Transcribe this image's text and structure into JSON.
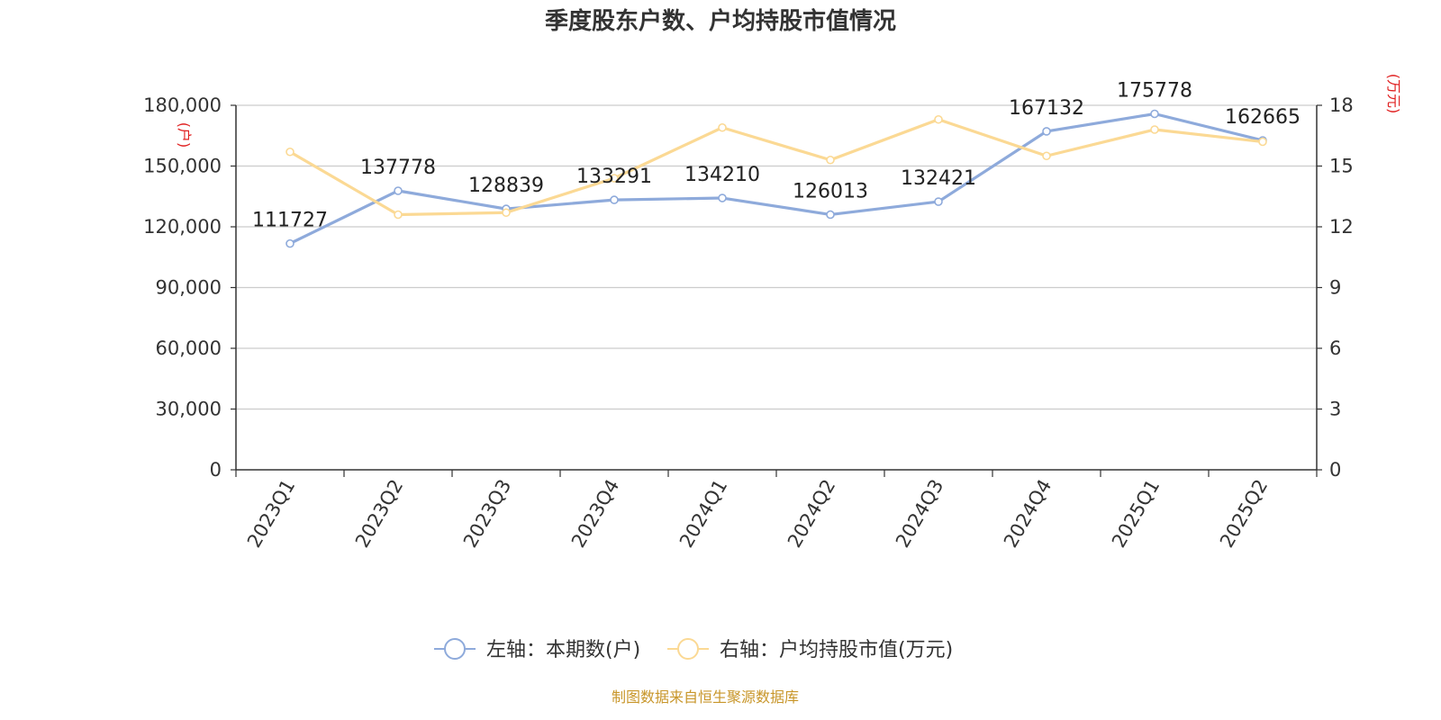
{
  "title": "季度股东户数、户均持股市值情况",
  "source": "制图数据来自恒生聚源数据库",
  "left_unit": "(户)",
  "right_unit": "(万元)",
  "chart_data": {
    "type": "line",
    "title": "季度股东户数、户均持股市值情况",
    "categories": [
      "2023Q1",
      "2023Q2",
      "2023Q3",
      "2023Q4",
      "2024Q1",
      "2024Q2",
      "2024Q3",
      "2024Q4",
      "2025Q1",
      "2025Q2"
    ],
    "y_left": {
      "range": [
        0,
        180000
      ],
      "ticks": [
        0,
        30000,
        60000,
        90000,
        120000,
        150000,
        180000
      ],
      "tick_labels": [
        "0",
        "30,000",
        "60,000",
        "90,000",
        "120,000",
        "150,000",
        "180,000"
      ],
      "unit": "(户)"
    },
    "y_right": {
      "range": [
        0,
        18
      ],
      "ticks": [
        0,
        3,
        6,
        9,
        12,
        15,
        18
      ],
      "tick_labels": [
        "0",
        "3",
        "6",
        "9",
        "12",
        "15",
        "18"
      ],
      "unit": "(万元)"
    },
    "series": [
      {
        "name": "左轴：本期数(户)",
        "axis": "left",
        "color": "#8eaadb",
        "values": [
          111727,
          137778,
          128839,
          133291,
          134210,
          126013,
          132421,
          167132,
          175778,
          162665
        ],
        "labels": [
          "111727",
          "137778",
          "128839",
          "133291",
          "134210",
          "126013",
          "132421",
          "167132",
          "175778",
          "162665"
        ]
      },
      {
        "name": "右轴：户均持股市值(万元)",
        "axis": "right",
        "color": "#fbd994",
        "values": [
          15.7,
          12.6,
          12.7,
          14.4,
          16.9,
          15.3,
          17.3,
          15.5,
          16.8,
          16.2
        ]
      }
    ],
    "grid": true,
    "legend_position": "bottom-center"
  }
}
